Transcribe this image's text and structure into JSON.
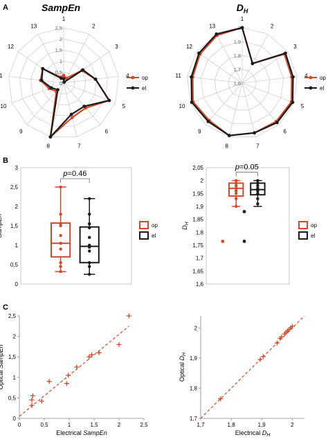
{
  "panels": {
    "a": "A",
    "b": "B",
    "c": "C"
  },
  "colors": {
    "op": "#d04a2a",
    "el": "#1b1b1b",
    "grid": "#d0d0d0",
    "axis": "#888888"
  },
  "chart_data": [
    {
      "type": "radar",
      "title": "SampEn",
      "spokes": [
        "1",
        "2",
        "3",
        "4",
        "5",
        "6",
        "7",
        "8",
        "9",
        "10",
        "11",
        "12",
        "13"
      ],
      "rings": [
        "0",
        "0,5",
        "1",
        "1,5",
        "2",
        "2,5"
      ],
      "range": [
        0,
        2.5
      ],
      "series": [
        {
          "name": "op",
          "values": [
            0.35,
            0.25,
            1.0,
            1.45,
            2.2,
            1.5,
            1.6,
            2.5,
            0.5,
            0.7,
            1.05,
            1.15,
            0.3
          ]
        },
        {
          "name": "el",
          "values": [
            0.2,
            0.05,
            1.05,
            1.45,
            2.2,
            1.4,
            1.45,
            2.5,
            0.4,
            0.6,
            1.0,
            1.15,
            0.25
          ]
        }
      ],
      "legend": [
        "op",
        "el"
      ]
    },
    {
      "type": "radar",
      "title": "D",
      "title_sub": "H",
      "spokes": [
        "1",
        "2",
        "3",
        "4",
        "5",
        "6",
        "7",
        "8",
        "9",
        "10",
        "11",
        "12",
        "13"
      ],
      "rings": [
        "1,6",
        "1,7",
        "1,8",
        "1,9",
        "2"
      ],
      "range": [
        1.6,
        2.0
      ],
      "series": [
        {
          "name": "op",
          "values": [
            2.0,
            1.76,
            1.97,
            1.96,
            1.98,
            1.97,
            1.97,
            1.99,
            1.96,
            1.98,
            1.96,
            1.97,
            1.99
          ]
        },
        {
          "name": "el",
          "values": [
            2.0,
            1.76,
            1.98,
            1.97,
            1.99,
            1.98,
            1.97,
            1.99,
            1.97,
            1.99,
            1.97,
            1.98,
            2.0
          ]
        }
      ],
      "legend": [
        "op",
        "el"
      ]
    },
    {
      "type": "boxplot",
      "ylabel": "SampEn",
      "yticks": [
        "0",
        "0,5",
        "1",
        "1,5",
        "2",
        "2,5",
        "3"
      ],
      "ylim": [
        0,
        3
      ],
      "annotation": {
        "italic": "p",
        "text": "=0.46"
      },
      "boxes": [
        {
          "name": "op",
          "min": 0.32,
          "q1": 0.7,
          "median": 1.05,
          "q3": 1.57,
          "max": 2.5,
          "points": [
            0.32,
            0.45,
            0.55,
            0.9,
            1.05,
            1.05,
            1.25,
            1.5,
            1.55,
            1.8,
            2.5
          ]
        },
        {
          "name": "el",
          "min": 0.25,
          "q1": 0.55,
          "median": 0.97,
          "q3": 1.47,
          "max": 2.2,
          "points": [
            0.25,
            0.45,
            0.55,
            0.85,
            0.95,
            1.0,
            1.2,
            1.45,
            1.55,
            1.8,
            2.2
          ]
        }
      ],
      "legend": [
        "op",
        "el"
      ]
    },
    {
      "type": "boxplot",
      "ylabel": "D",
      "ylabel_sub": "H",
      "yticks": [
        "1,6",
        "1,65",
        "1,7",
        "1,75",
        "1,8",
        "1,85",
        "1,9",
        "1,95",
        "2",
        "2,05"
      ],
      "ylim": [
        1.6,
        2.05
      ],
      "annotation": {
        "italic": "p",
        "text": "=0.05"
      },
      "boxes": [
        {
          "name": "op",
          "min": 1.9,
          "q1": 1.94,
          "median": 1.97,
          "q3": 1.99,
          "max": 2.0,
          "points": [
            1.9,
            1.93,
            1.95,
            1.96,
            1.97,
            1.98,
            1.99,
            2.0
          ],
          "outliers": [
            1.765
          ]
        },
        {
          "name": "el",
          "min": 1.9,
          "q1": 1.945,
          "median": 1.965,
          "q3": 1.99,
          "max": 2.0,
          "points": [
            1.91,
            1.93,
            1.95,
            1.96,
            1.97,
            1.98,
            1.99,
            2.0
          ],
          "outliers": [
            1.88,
            1.765
          ]
        }
      ],
      "legend": [
        "op",
        "el"
      ]
    },
    {
      "type": "scatter",
      "xlabel": "Electrical",
      "xlabel_italic": "SampEn",
      "ylabel": "Optical",
      "ylabel_italic": "SampEn",
      "xticks": [
        "0",
        "0,5",
        "1",
        "1,5",
        "2",
        "2,5"
      ],
      "yticks": [
        "0",
        "0,5",
        "1",
        "1,5",
        "2",
        "2,5"
      ],
      "xlim": [
        0,
        2.5
      ],
      "ylim": [
        0,
        2.5
      ],
      "points": [
        [
          0.25,
          0.32
        ],
        [
          0.25,
          0.45
        ],
        [
          0.27,
          0.55
        ],
        [
          0.45,
          0.42
        ],
        [
          0.6,
          0.9
        ],
        [
          0.95,
          0.85
        ],
        [
          0.98,
          1.05
        ],
        [
          1.15,
          1.25
        ],
        [
          1.4,
          1.5
        ],
        [
          1.45,
          1.55
        ],
        [
          1.6,
          1.6
        ],
        [
          2.0,
          1.8
        ],
        [
          2.2,
          2.5
        ]
      ],
      "trendline": {
        "x": [
          0,
          2.2
        ],
        "y": [
          0.05,
          2.25
        ]
      }
    },
    {
      "type": "scatter",
      "xlabel": "Electrical",
      "xlabel_italic": "D",
      "xlabel_sub": "H",
      "ylabel": "Optical",
      "ylabel_italic": "D",
      "ylabel_sub": "H",
      "xticks": [
        "1,7",
        "1,8",
        "1,9",
        "2"
      ],
      "yticks": [
        "1,7",
        "1,8",
        "1,9",
        "2"
      ],
      "xlim": [
        1.7,
        2.04
      ],
      "ylim": [
        1.7,
        2.04
      ],
      "points": [
        [
          1.765,
          1.765
        ],
        [
          1.895,
          1.895
        ],
        [
          1.905,
          1.905
        ],
        [
          1.95,
          1.95
        ],
        [
          1.96,
          1.965
        ],
        [
          1.965,
          1.97
        ],
        [
          1.975,
          1.98
        ],
        [
          1.98,
          1.985
        ],
        [
          1.985,
          1.99
        ],
        [
          1.99,
          1.995
        ],
        [
          1.995,
          2.0
        ],
        [
          2.0,
          2.005
        ]
      ],
      "trendline": {
        "x": [
          1.7,
          2.04
        ],
        "y": [
          1.7,
          2.04
        ]
      }
    }
  ]
}
